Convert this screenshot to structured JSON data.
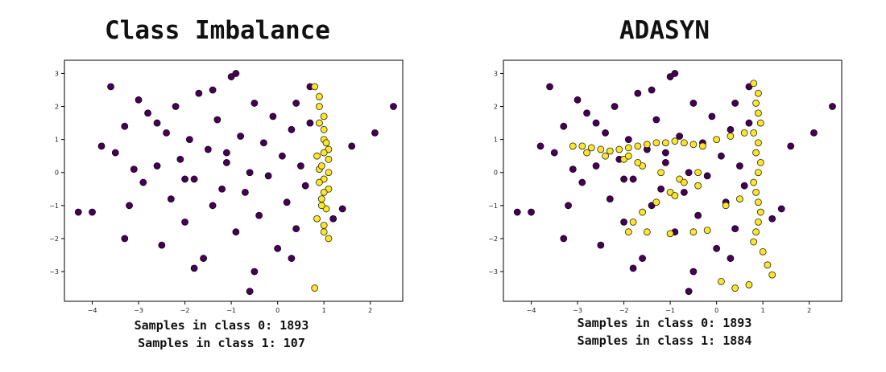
{
  "colors": {
    "class0": "#440154",
    "class1": "#fde725"
  },
  "chart_data": [
    {
      "type": "scatter",
      "title": "Class Imbalance",
      "xlim": [
        -4.6,
        2.7
      ],
      "ylim": [
        -3.9,
        3.4
      ],
      "xticks": [
        -4,
        -3,
        -2,
        -1,
        0,
        1,
        2
      ],
      "yticks": [
        -3,
        -2,
        -1,
        0,
        1,
        2,
        3
      ],
      "grid": false,
      "captions": [
        "Samples in class 0: 1893",
        "Samples in class 1: 107"
      ],
      "series": [
        {
          "class": 0,
          "color": "#440154",
          "x": [
            -4.3,
            -4.0,
            -3.8,
            -3.6,
            -3.5,
            -3.3,
            -3.2,
            -3.0,
            -2.9,
            -2.8,
            -2.6,
            -2.5,
            -2.4,
            -2.3,
            -2.2,
            -2.1,
            -2.0,
            -1.9,
            -1.8,
            -1.7,
            -1.6,
            -1.5,
            -1.4,
            -1.3,
            -1.2,
            -1.1,
            -1.0,
            -0.9,
            -0.8,
            -0.7,
            -0.6,
            -0.5,
            -0.4,
            -0.3,
            -0.2,
            -0.1,
            0.0,
            0.1,
            0.2,
            0.3,
            0.4,
            0.5,
            0.6,
            0.7,
            1.2,
            1.4,
            1.6,
            2.1,
            2.5,
            -0.6,
            -3.3,
            -3.1,
            -2.6,
            -1.8,
            -1.4,
            -0.9,
            -0.5,
            0.4,
            -2.0,
            -1.1,
            0.3,
            0.7
          ],
          "y": [
            -1.2,
            -1.2,
            0.8,
            2.6,
            0.6,
            1.4,
            -1.0,
            2.2,
            -0.3,
            1.8,
            0.2,
            -2.2,
            1.2,
            -0.8,
            2.0,
            0.4,
            -1.5,
            1.0,
            -0.2,
            2.4,
            -2.6,
            0.7,
            -1.0,
            1.6,
            -0.5,
            0.3,
            2.9,
            -1.8,
            1.1,
            -0.6,
            0.0,
            2.1,
            -1.3,
            0.9,
            -0.1,
            1.7,
            -2.3,
            0.5,
            -0.9,
            1.3,
            -1.7,
            0.2,
            -0.4,
            1.5,
            -1.4,
            -1.1,
            0.8,
            1.2,
            2.0,
            -3.6,
            -2.0,
            0.1,
            1.5,
            -2.9,
            2.5,
            3.0,
            -3.0,
            2.1,
            -0.2,
            0.6,
            -2.6,
            2.6
          ]
        },
        {
          "class": 1,
          "color": "#fde725",
          "x": [
            0.8,
            0.9,
            0.9,
            1.0,
            1.0,
            1.0,
            1.1,
            1.1,
            0.9,
            1.0,
            1.1,
            0.95,
            1.05,
            0.85,
            1.0,
            1.1,
            0.9,
            1.0,
            1.05,
            0.95,
            1.0,
            0.8,
            0.9,
            1.0,
            1.1,
            0.85,
            0.95
          ],
          "y": [
            2.6,
            2.3,
            2.0,
            1.7,
            1.3,
            1.0,
            0.7,
            0.4,
            0.1,
            -0.2,
            -0.5,
            -0.8,
            -1.1,
            -1.4,
            -1.8,
            -2.0,
            -0.3,
            0.6,
            0.9,
            0.2,
            -0.6,
            -3.5,
            1.5,
            -1.6,
            0.0,
            0.5,
            -1.0
          ]
        }
      ]
    },
    {
      "type": "scatter",
      "title": "ADASYN",
      "xlim": [
        -4.6,
        2.7
      ],
      "ylim": [
        -3.9,
        3.4
      ],
      "xticks": [
        -4,
        -3,
        -2,
        -1,
        0,
        1,
        2
      ],
      "yticks": [
        -3,
        -2,
        -1,
        0,
        1,
        2,
        3
      ],
      "grid": false,
      "captions": [
        "Samples in class 0: 1893",
        "Samples in class 1: 1884"
      ],
      "series": [
        {
          "class": 0,
          "color": "#440154",
          "x": [
            -4.3,
            -4.0,
            -3.8,
            -3.6,
            -3.5,
            -3.3,
            -3.2,
            -3.0,
            -2.9,
            -2.8,
            -2.6,
            -2.5,
            -2.4,
            -2.3,
            -2.2,
            -2.1,
            -2.0,
            -1.9,
            -1.8,
            -1.7,
            -1.6,
            -1.5,
            -1.4,
            -1.3,
            -1.2,
            -1.1,
            -1.0,
            -0.9,
            -0.8,
            -0.7,
            -0.6,
            -0.5,
            -0.4,
            -0.3,
            -0.2,
            -0.1,
            0.0,
            0.1,
            0.2,
            0.3,
            0.4,
            0.5,
            0.6,
            0.7,
            1.2,
            1.4,
            1.6,
            2.1,
            2.5,
            -0.6,
            -3.3,
            -3.1,
            -2.6,
            -1.8,
            -1.4,
            -0.9,
            -0.5,
            0.4,
            -2.0,
            -1.1,
            0.3,
            0.7
          ],
          "y": [
            -1.2,
            -1.2,
            0.8,
            2.6,
            0.6,
            1.4,
            -1.0,
            2.2,
            -0.3,
            1.8,
            0.2,
            -2.2,
            1.2,
            -0.8,
            2.0,
            0.4,
            -1.5,
            1.0,
            -0.2,
            2.4,
            -2.6,
            0.7,
            -1.0,
            1.6,
            -0.5,
            0.3,
            2.9,
            -1.8,
            1.1,
            -0.6,
            0.0,
            2.1,
            -1.3,
            0.9,
            -0.1,
            1.7,
            -2.3,
            0.5,
            -0.9,
            1.3,
            -1.7,
            0.2,
            -0.4,
            1.5,
            -1.4,
            -1.1,
            0.8,
            1.2,
            2.0,
            -3.6,
            -2.0,
            0.1,
            1.5,
            -2.9,
            2.5,
            3.0,
            -3.0,
            2.1,
            -0.2,
            0.6,
            -2.6,
            2.6
          ]
        },
        {
          "class": 1,
          "color": "#fde725",
          "x": [
            -3.1,
            -2.9,
            -2.7,
            -2.5,
            -2.3,
            -2.1,
            -1.9,
            -1.7,
            -1.5,
            -1.3,
            -1.1,
            -0.9,
            -0.7,
            -0.5,
            -0.3,
            -2.8,
            -2.4,
            -2.0,
            -1.6,
            -1.2,
            -0.8,
            -0.4,
            0.0,
            0.3,
            0.6,
            -1.9,
            -1.5,
            -1.0,
            -0.5,
            -0.2,
            0.2,
            0.5,
            0.8,
            0.9,
            0.85,
            0.9,
            0.95,
            0.8,
            0.9,
            0.85,
            0.95,
            0.9,
            0.8,
            0.85,
            0.9,
            0.95,
            0.9,
            0.85,
            0.8,
            1.0,
            1.1,
            1.2,
            0.7,
            0.4,
            0.1,
            -1.8,
            -1.6,
            -1.3,
            -1.0,
            -0.7,
            -0.4,
            -1.7,
            -1.9,
            -0.9
          ],
          "y": [
            0.8,
            0.8,
            0.75,
            0.7,
            0.65,
            0.7,
            0.75,
            0.8,
            0.85,
            0.9,
            0.9,
            0.95,
            0.9,
            0.85,
            0.8,
            0.6,
            0.5,
            0.4,
            0.2,
            0.0,
            -0.2,
            -0.4,
            1.0,
            1.1,
            1.2,
            -1.8,
            -1.8,
            -1.85,
            -1.8,
            -1.75,
            -1.0,
            -0.8,
            2.7,
            2.4,
            2.1,
            1.8,
            1.5,
            1.2,
            0.9,
            0.6,
            0.3,
            0.0,
            -0.3,
            -0.6,
            -0.9,
            -1.2,
            -1.5,
            -1.8,
            -2.1,
            -2.4,
            -2.8,
            -3.1,
            -3.4,
            -3.5,
            -3.3,
            -1.5,
            -1.2,
            -0.9,
            -0.6,
            -0.3,
            0.0,
            0.3,
            0.5,
            -0.7
          ]
        }
      ]
    }
  ]
}
